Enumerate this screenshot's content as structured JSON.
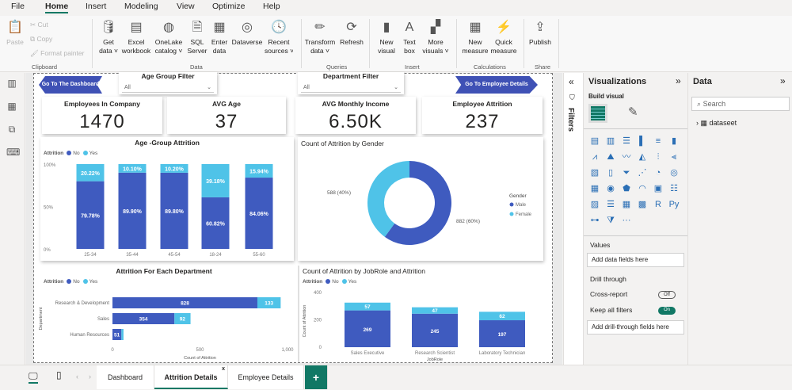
{
  "menu": [
    "File",
    "Home",
    "Insert",
    "Modeling",
    "View",
    "Optimize",
    "Help"
  ],
  "ribbon": {
    "clipboard": {
      "paste": "Paste",
      "cut": "Cut",
      "copy": "Copy",
      "format_painter": "Format painter",
      "group": "Clipboard"
    },
    "data": {
      "items": [
        [
          "Get",
          "data ˅"
        ],
        [
          "Excel",
          "workbook"
        ],
        [
          "OneLake",
          "catalog ˅"
        ],
        [
          "SQL",
          "Server"
        ],
        [
          "Enter",
          "data"
        ],
        [
          "Dataverse",
          ""
        ],
        [
          "Recent",
          "sources ˅"
        ]
      ],
      "group": "Data"
    },
    "queries": {
      "items": [
        [
          "Transform",
          "data ˅"
        ],
        [
          "Refresh",
          ""
        ]
      ],
      "group": "Queries"
    },
    "insert": {
      "items": [
        [
          "New",
          "visual"
        ],
        [
          "Text",
          "box"
        ],
        [
          "More",
          "visuals ˅"
        ]
      ],
      "group": "Insert"
    },
    "calculations": {
      "items": [
        [
          "New",
          "measure"
        ],
        [
          "Quick",
          "measure"
        ]
      ],
      "group": "Calculations"
    },
    "share": {
      "items": [
        [
          "Publish",
          ""
        ]
      ],
      "group": "Share"
    }
  },
  "report": {
    "nav_left": "Go To The Dashboard",
    "nav_right": "Go To Employee Details",
    "slicers": [
      {
        "title": "Age Group Filter",
        "value": "All"
      },
      {
        "title": "Department Filter",
        "value": "All"
      }
    ],
    "kpis": [
      {
        "title": "Employees In Company",
        "value": "1470"
      },
      {
        "title": "AVG Age",
        "value": "37"
      },
      {
        "title": "AVG Monthly Income",
        "value": "6.50K"
      },
      {
        "title": "Employee Attrition",
        "value": "237"
      }
    ]
  },
  "colors": {
    "no": "#3f5bbf",
    "yes": "#4fc3e8",
    "accent": "#117865"
  },
  "chart_data": [
    {
      "type": "bar",
      "stacked": "100%",
      "title": "Age -Group Attrition",
      "legend_title": "Attrition",
      "legend_position": "top-left",
      "categories": [
        "25-34",
        "35-44",
        "45-54",
        "18-24",
        "55-60"
      ],
      "series": [
        {
          "name": "No",
          "values": [
            79.78,
            89.9,
            89.8,
            60.82,
            84.06
          ]
        },
        {
          "name": "Yes",
          "values": [
            20.22,
            10.1,
            10.2,
            39.18,
            15.94
          ]
        }
      ],
      "data_labels": {
        "No": [
          "79.78%",
          "89.90%",
          "89.80%",
          "60.82%",
          "84.06%"
        ],
        "Yes": [
          "20.22%",
          "10.10%",
          "10.20%",
          "39.18%",
          "15.94%"
        ]
      },
      "yticks": [
        "0%",
        "50%",
        "100%"
      ],
      "ylim": [
        0,
        100
      ]
    },
    {
      "type": "pie",
      "donut": true,
      "title": "Count of Attrition by Gender",
      "legend_title": "Gender",
      "legend_position": "right",
      "categories": [
        "Male",
        "Female"
      ],
      "values": [
        882,
        588
      ],
      "data_labels": [
        "882 (60%)",
        "588 (40%)"
      ]
    },
    {
      "type": "bar",
      "orientation": "horizontal",
      "stacked": true,
      "title": "Attrition For Each Department",
      "legend_title": "Attrition",
      "legend_position": "top-left",
      "categories": [
        "Research & Development",
        "Sales",
        "Human Resources"
      ],
      "series": [
        {
          "name": "No",
          "values": [
            828,
            354,
            51
          ]
        },
        {
          "name": "Yes",
          "values": [
            133,
            92,
            12
          ]
        }
      ],
      "data_labels": {
        "No": [
          "828",
          "354",
          "51"
        ],
        "Yes": [
          "133",
          "92",
          ""
        ]
      },
      "xlabel": "Count of Attrition",
      "ylabel": "Department",
      "xticks": [
        "0",
        "500",
        "1,000"
      ],
      "xlim": [
        0,
        1000
      ]
    },
    {
      "type": "bar",
      "stacked": true,
      "title": "Count of Attrition by JobRole and Attrition",
      "legend_title": "Attrition",
      "legend_position": "top-left",
      "categories": [
        "Sales Executive",
        "Research Scientist",
        "Laboratory Technician"
      ],
      "series": [
        {
          "name": "No",
          "values": [
            269,
            245,
            197
          ]
        },
        {
          "name": "Yes",
          "values": [
            57,
            47,
            62
          ]
        }
      ],
      "xlabel": "JobRole",
      "ylabel": "Count of Attrition",
      "yticks": [
        "0",
        "200",
        "400"
      ],
      "ylim": [
        0,
        400
      ]
    }
  ],
  "filters_label": "Filters",
  "visualizations": {
    "title": "Visualizations",
    "build_visual": "Build visual",
    "values": "Values",
    "add_data": "Add data fields here",
    "drill_through": "Drill through",
    "cross_report": "Cross-report",
    "cross_report_state": "Off",
    "keep_filters": "Keep all filters",
    "keep_filters_state": "On",
    "add_drill": "Add drill-through fields here",
    "more": "···"
  },
  "data_pane": {
    "title": "Data",
    "search_placeholder": "Search",
    "tables": [
      "dataseet"
    ]
  },
  "tabs": [
    {
      "label": "Dashboard"
    },
    {
      "label": "Attrition Details",
      "active": true
    },
    {
      "label": "Employee Details"
    }
  ],
  "add_tab": "+"
}
